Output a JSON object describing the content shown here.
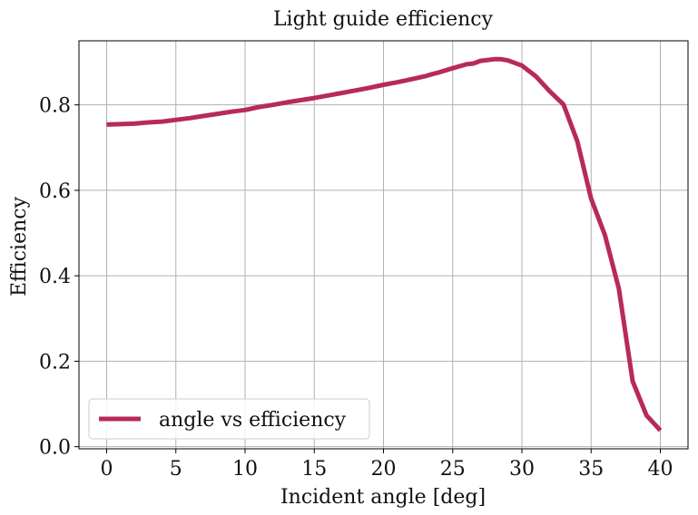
{
  "chart_data": {
    "type": "line",
    "title": "Light guide efficiency",
    "xlabel": "Incident angle [deg]",
    "ylabel": "Efficiency",
    "xlim": [
      -2,
      42
    ],
    "ylim": [
      -0.005,
      0.95
    ],
    "xticks": [
      0,
      5,
      10,
      15,
      20,
      25,
      30,
      35,
      40
    ],
    "xtick_labels": [
      "0",
      "5",
      "10",
      "15",
      "20",
      "25",
      "30",
      "35",
      "40"
    ],
    "yticks": [
      0.0,
      0.2,
      0.4,
      0.6,
      0.8
    ],
    "ytick_labels": [
      "0.0",
      "0.2",
      "0.4",
      "0.6",
      "0.8"
    ],
    "grid": true,
    "legend_position": "lower-left",
    "series": [
      {
        "name": "angle vs efficiency",
        "color": "#b82a58",
        "x": [
          0,
          1,
          2,
          3,
          4,
          5,
          6,
          7,
          8,
          9,
          10,
          11,
          12,
          13,
          14,
          15,
          16,
          17,
          18,
          19,
          20,
          21,
          22,
          23,
          23.5,
          24,
          25,
          26,
          26.5,
          27,
          28,
          28.5,
          29,
          30,
          31,
          32,
          33,
          34,
          35,
          36,
          37,
          38,
          39,
          40
        ],
        "y": [
          0.754,
          0.755,
          0.756,
          0.759,
          0.761,
          0.765,
          0.769,
          0.774,
          0.779,
          0.784,
          0.788,
          0.795,
          0.8,
          0.806,
          0.811,
          0.816,
          0.822,
          0.828,
          0.834,
          0.84,
          0.847,
          0.853,
          0.86,
          0.867,
          0.872,
          0.876,
          0.886,
          0.895,
          0.897,
          0.903,
          0.907,
          0.907,
          0.904,
          0.892,
          0.867,
          0.832,
          0.801,
          0.715,
          0.58,
          0.495,
          0.37,
          0.153,
          0.073,
          0.038
        ]
      }
    ]
  }
}
